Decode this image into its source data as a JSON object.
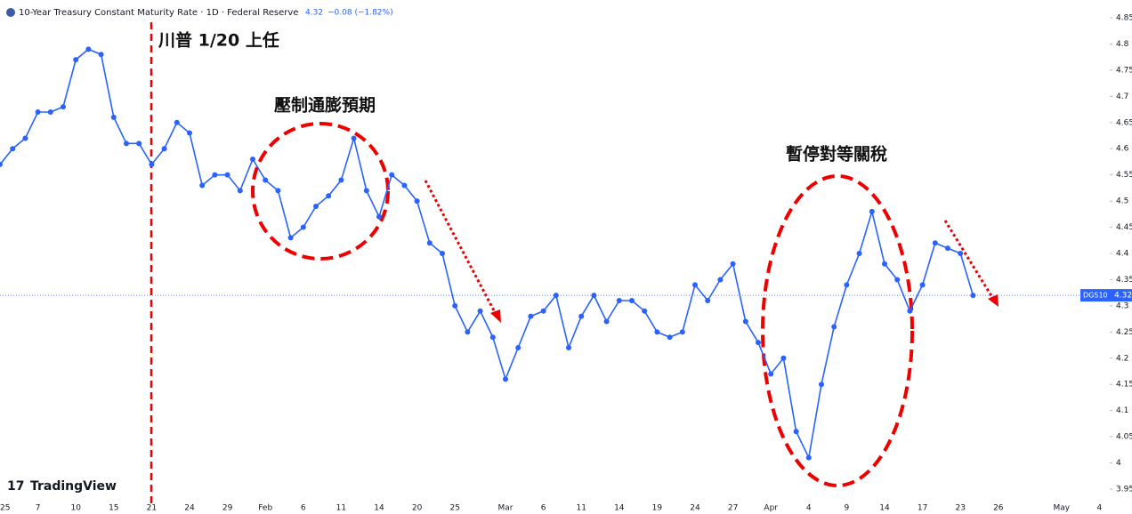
{
  "header": {
    "title": "10-Year Treasury Constant Maturity Rate · 1D · Federal Reserve",
    "change": "−0.08 (−1.82%)",
    "series_label": "DGS10",
    "brand": "TradingView"
  },
  "chart_data": {
    "type": "line",
    "annotations": [
      "川普 1/20 上任",
      "壓制通膨預期",
      "暫停對等關稅"
    ],
    "last_value": 4.32,
    "categories": [
      "25",
      null,
      null,
      "7",
      null,
      null,
      "10",
      null,
      null,
      "15",
      null,
      null,
      "21",
      null,
      null,
      "24",
      null,
      null,
      "29",
      null,
      null,
      "Feb",
      null,
      null,
      "6",
      null,
      null,
      "11",
      null,
      null,
      "14",
      null,
      null,
      "20",
      null,
      null,
      "25",
      null,
      null,
      null,
      "Mar",
      null,
      null,
      "6",
      null,
      null,
      "11",
      null,
      null,
      "14",
      null,
      null,
      "19",
      null,
      null,
      "24",
      null,
      null,
      "27",
      null,
      null,
      "Apr",
      null,
      null,
      "4",
      null,
      null,
      "9",
      null,
      null,
      "14",
      null,
      null,
      "17",
      null,
      null,
      "23",
      null,
      null,
      "26",
      null,
      null,
      null,
      null,
      "May",
      null,
      null,
      "4",
      null
    ],
    "series": [
      {
        "name": "DGS10",
        "color": "#2962ff",
        "values": [
          4.57,
          4.6,
          4.62,
          4.67,
          4.67,
          4.68,
          4.77,
          4.79,
          4.78,
          4.66,
          4.61,
          4.61,
          4.57,
          4.6,
          4.65,
          4.63,
          4.53,
          4.55,
          4.55,
          4.52,
          4.58,
          4.54,
          4.52,
          4.43,
          4.45,
          4.49,
          4.51,
          4.54,
          4.62,
          4.52,
          4.47,
          4.55,
          4.53,
          4.5,
          4.42,
          4.4,
          4.3,
          4.25,
          4.29,
          4.24,
          4.16,
          4.22,
          4.28,
          4.29,
          4.32,
          4.22,
          4.28,
          4.32,
          4.27,
          4.31,
          4.31,
          4.29,
          4.25,
          4.24,
          4.25,
          4.34,
          4.31,
          4.35,
          4.38,
          4.27,
          4.23,
          4.17,
          4.2,
          4.06,
          4.01,
          4.15,
          4.26,
          4.34,
          4.4,
          4.48,
          4.38,
          4.35,
          4.29,
          4.34,
          4.42,
          4.41,
          4.4,
          4.32,
          null,
          null,
          null,
          null,
          null,
          null,
          null,
          null,
          null,
          null,
          null
        ]
      }
    ],
    "ylim": [
      3.95,
      4.85
    ],
    "yticks": [
      3.95,
      4,
      4.05,
      4.1,
      4.15,
      4.2,
      4.25,
      4.3,
      4.35,
      4.4,
      4.45,
      4.5,
      4.55,
      4.6,
      4.65,
      4.7,
      4.75,
      4.8,
      4.85
    ]
  }
}
